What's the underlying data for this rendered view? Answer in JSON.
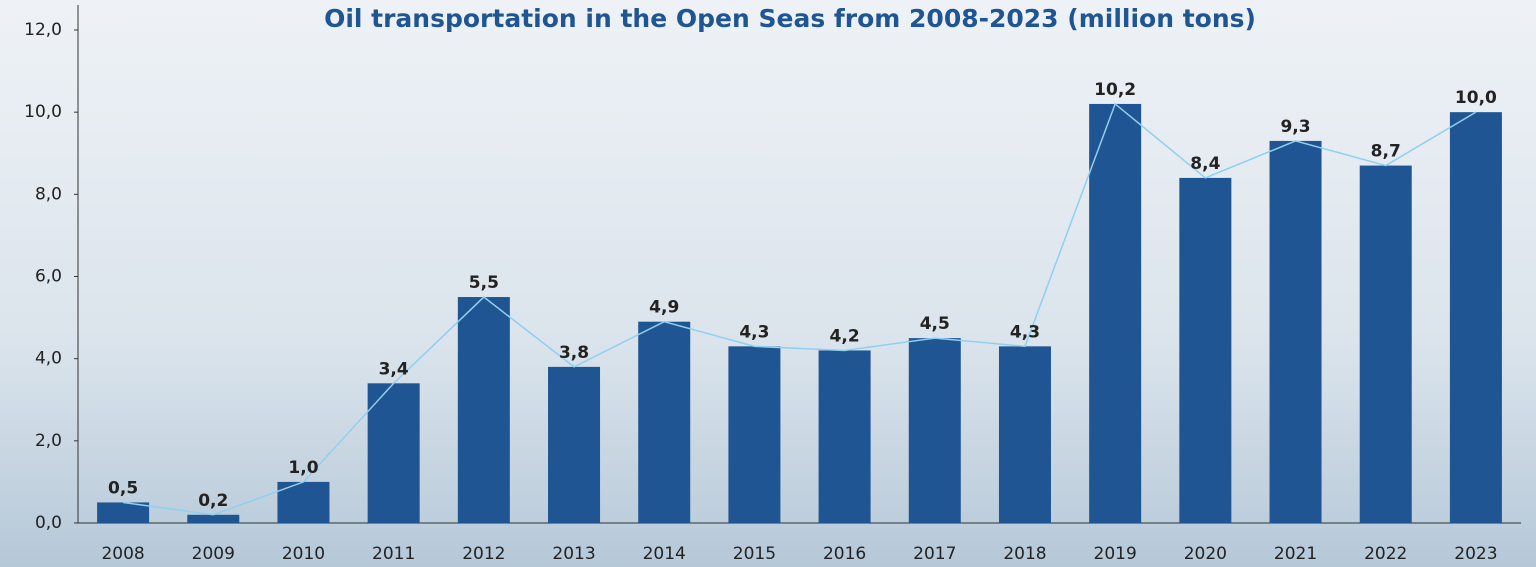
{
  "chart_data": {
    "type": "bar",
    "title": "Oil transportation in the Open Seas from 2008-2023 (million tons)",
    "categories": [
      "2008",
      "2009",
      "2010",
      "2011",
      "2012",
      "2013",
      "2014",
      "2015",
      "2016",
      "2017",
      "2018",
      "2019",
      "2020",
      "2021",
      "2022",
      "2023"
    ],
    "values": [
      0.5,
      0.2,
      1.0,
      3.4,
      5.5,
      3.8,
      4.9,
      4.3,
      4.2,
      4.5,
      4.3,
      10.2,
      8.4,
      9.3,
      8.7,
      10.0
    ],
    "value_labels": [
      "0,5",
      "0,2",
      "1,0",
      "3,4",
      "5,5",
      "3,8",
      "4,9",
      "4,3",
      "4,2",
      "4,5",
      "4,3",
      "10,2",
      "8,4",
      "9,3",
      "8,7",
      "10,0"
    ],
    "color": "#1f5592",
    "line_overlay": true,
    "line_color": "#8fd0f0",
    "ylim": [
      0,
      12
    ],
    "yticks": [
      {
        "value": 0,
        "label": "0,0"
      },
      {
        "value": 2,
        "label": "2,0"
      },
      {
        "value": 4,
        "label": "4,0"
      },
      {
        "value": 6,
        "label": "6,0"
      },
      {
        "value": 8,
        "label": "8,0"
      },
      {
        "value": 10,
        "label": "10,0"
      },
      {
        "value": 12,
        "label": "12,0"
      }
    ],
    "grid": false
  }
}
